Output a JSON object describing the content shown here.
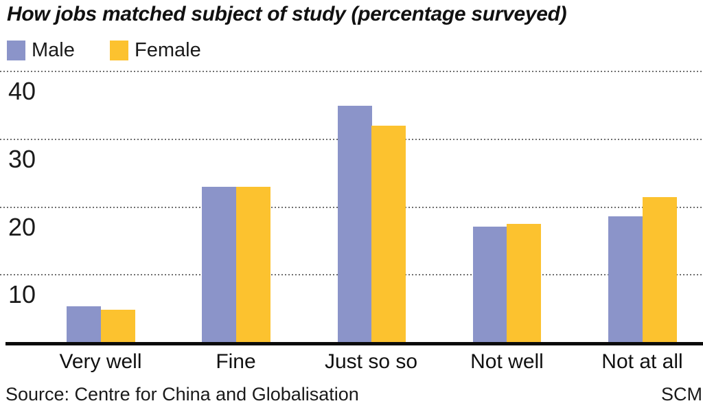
{
  "chart": {
    "title": "How jobs matched subject of study (percentage surveyed)",
    "source": "Source: Centre for China and Globalisation",
    "credit": "SCM",
    "colors": {
      "male": "#8B94C9",
      "female": "#FCC22F",
      "grid": "#6F6F6F",
      "axis": "#0B0B0B",
      "text": "#1A1A1A"
    }
  },
  "chart_data": {
    "type": "bar",
    "title": "How jobs matched subject of study (percentage surveyed)",
    "categories": [
      "Very well",
      "Fine",
      "Just so so",
      "Not well",
      "Not at all"
    ],
    "series": [
      {
        "name": "Male",
        "color": "#8B94C9",
        "values": [
          5.4,
          23.0,
          34.9,
          17.1,
          18.6
        ]
      },
      {
        "name": "Female",
        "color": "#FCC22F",
        "values": [
          4.9,
          23.0,
          32.0,
          17.5,
          21.5
        ]
      }
    ],
    "yticks": [
      40,
      30,
      20,
      10
    ],
    "ylim": [
      0,
      42
    ],
    "grid": "horizontal-dotted",
    "legend_position": "top-left",
    "xlabel": "",
    "ylabel": "",
    "source": "Source: Centre for China and Globalisation",
    "credit": "SCM"
  }
}
